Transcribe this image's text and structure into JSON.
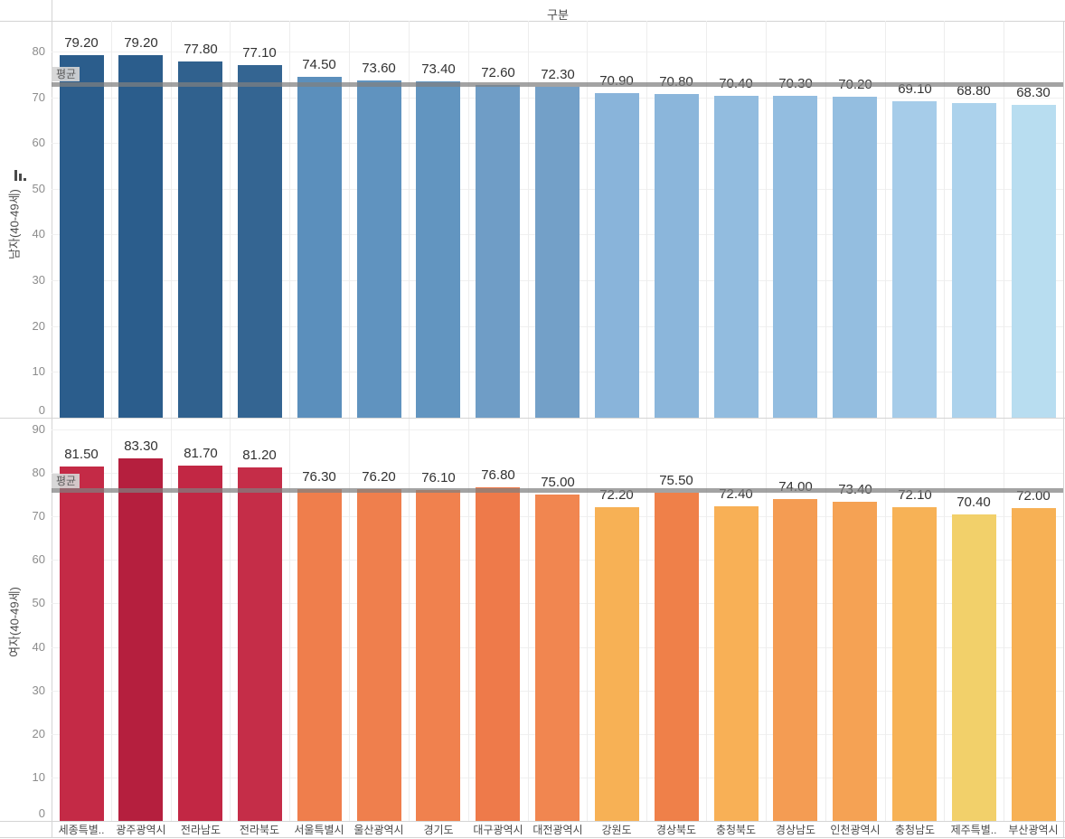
{
  "header": {
    "title": "구분"
  },
  "axes": {
    "top_ylabel": "남자(40-49세)",
    "bottom_ylabel": "여자(40-49세)"
  },
  "chart_data": [
    {
      "type": "bar",
      "panel": "top",
      "ylabel": "남자(40-49세)",
      "categories": [
        "세종특별..",
        "광주광역시",
        "전라남도",
        "전라북도",
        "서울특별시",
        "울산광역시",
        "경기도",
        "대구광역시",
        "대전광역시",
        "강원도",
        "경상북도",
        "충청북도",
        "경상남도",
        "인천광역시",
        "충청남도",
        "제주특별..",
        "부산광역시"
      ],
      "values": [
        79.2,
        79.2,
        77.8,
        77.1,
        74.5,
        73.6,
        73.4,
        72.6,
        72.3,
        70.9,
        70.8,
        70.4,
        70.3,
        70.2,
        69.1,
        68.8,
        68.3
      ],
      "colors": [
        "#2b5d8c",
        "#2b5d8c",
        "#30618e",
        "#346592",
        "#5b8fbc",
        "#6093bf",
        "#6295c0",
        "#6f9dc6",
        "#73a0c8",
        "#89b4da",
        "#8bb6db",
        "#92bcdf",
        "#93bde0",
        "#94bee0",
        "#a6cce9",
        "#acd2ec",
        "#b8ddf0"
      ],
      "ylim": [
        0,
        86.7
      ],
      "yticks": [
        0,
        10,
        20,
        30,
        40,
        50,
        60,
        70,
        80
      ],
      "grid": true,
      "ref_line": {
        "value": 72.85,
        "label": "평균",
        "color": "#808080"
      },
      "sorted": "descending"
    },
    {
      "type": "bar",
      "panel": "bottom",
      "ylabel": "여자(40-49세)",
      "categories": [
        "세종특별..",
        "광주광역시",
        "전라남도",
        "전라북도",
        "서울특별시",
        "울산광역시",
        "경기도",
        "대구광역시",
        "대전광역시",
        "강원도",
        "경상북도",
        "충청북도",
        "경상남도",
        "인천광역시",
        "충청남도",
        "제주특별..",
        "부산광역시"
      ],
      "values": [
        81.5,
        83.3,
        81.7,
        81.2,
        76.3,
        76.2,
        76.1,
        76.8,
        75.0,
        72.2,
        75.5,
        72.4,
        74.0,
        73.4,
        72.1,
        70.4,
        72.0
      ],
      "colors": [
        "#c42a46",
        "#b51f3e",
        "#c22744",
        "#c52d48",
        "#ef7e4c",
        "#ef7f4d",
        "#f0814e",
        "#ee7a4a",
        "#f18650",
        "#f7b155",
        "#ef8049",
        "#f8b056",
        "#f49c53",
        "#f5a254",
        "#f7b256",
        "#f2d06a",
        "#f7b155"
      ],
      "ylim": [
        0,
        92.5
      ],
      "yticks": [
        0,
        10,
        20,
        30,
        40,
        50,
        60,
        70,
        80,
        90
      ],
      "grid": true,
      "ref_line": {
        "value": 75.89,
        "label": "평균",
        "color": "#808080"
      },
      "show_category_labels": true
    }
  ]
}
